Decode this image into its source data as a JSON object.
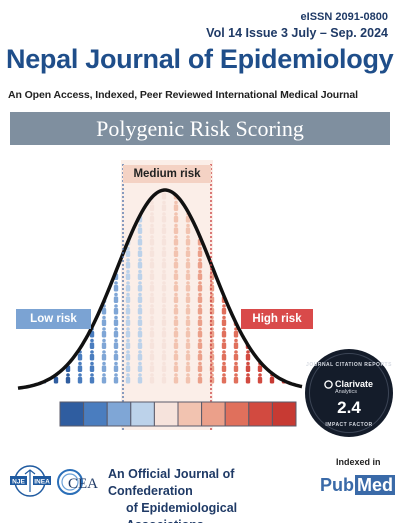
{
  "header": {
    "eissn": "eISSN 2091-0800",
    "issue": "Vol 14 Issue 3 July – Sep. 2024",
    "journal_title": "Nepal Journal of Epidemiology",
    "tagline": "An Open Access, Indexed, Peer Reviewed International Medical Journal"
  },
  "banner": {
    "theme": "Polygenic Risk Scoring"
  },
  "figure": {
    "labels": {
      "low": "Low risk",
      "medium": "Medium risk",
      "high": "High risk"
    },
    "colors": {
      "low": "#7ba3d3",
      "medium": "#f4d2c4",
      "high": "#d94a4a",
      "banner": "#7f8f9f",
      "title": "#1f4e8a"
    },
    "risk_scale_colors": [
      "#2f5da0",
      "#4a7dbf",
      "#7fa6d6",
      "#bcd2ea",
      "#f6e3dc",
      "#f2c3b0",
      "#eba08a",
      "#e0705c",
      "#d24a40",
      "#c73a33"
    ]
  },
  "badge": {
    "top_text": "JOURNAL CITATION REPORTS",
    "brand": "Clarivate",
    "brand_sub": "Analytics",
    "impact_factor": "2.4",
    "bottom_text": "IMPACT FACTOR"
  },
  "footer": {
    "logo_nje": "NJE",
    "logo_inea": "INEA",
    "logo_cea": "CEA",
    "official_line1": "An Official Journal of Confederation",
    "official_line2": "of Epidemiological Associations",
    "indexed_in": "Indexed in",
    "pubmed_pub": "Pub",
    "pubmed_med": "Med"
  }
}
